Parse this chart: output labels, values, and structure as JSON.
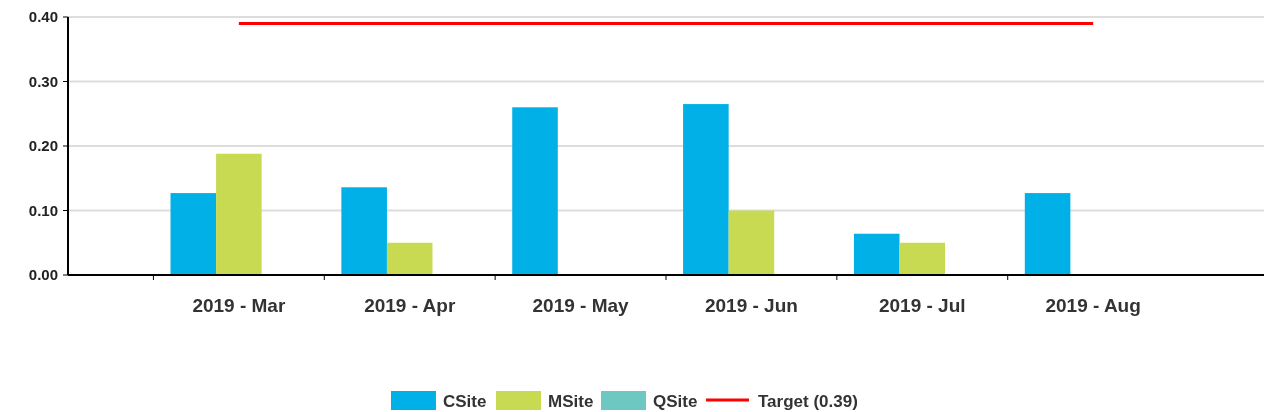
{
  "chart_data": {
    "type": "bar",
    "categories": [
      "2019 - Mar",
      "2019 - Apr",
      "2019 - May",
      "2019 - Jun",
      "2019 - Jul",
      "2019 - Aug"
    ],
    "series": [
      {
        "name": "CSite",
        "color": "#00b0e6",
        "values": [
          0.127,
          0.136,
          0.26,
          0.265,
          0.064,
          0.127
        ]
      },
      {
        "name": "MSite",
        "color": "#c8da52",
        "values": [
          0.188,
          0.05,
          null,
          0.1,
          0.05,
          null
        ]
      },
      {
        "name": "QSite",
        "color": "#6cc8c0",
        "values": [
          null,
          null,
          null,
          null,
          null,
          null
        ]
      },
      {
        "name": "Target (0.39)",
        "type": "line",
        "color": "#ff0000",
        "values": [
          0.39,
          0.39,
          0.39,
          0.39,
          0.39,
          0.39
        ]
      }
    ],
    "ylim": [
      0,
      0.4
    ],
    "yticks": [
      {
        "value": 0,
        "label": "0.00"
      },
      {
        "value": 0.1,
        "label": "0.10"
      },
      {
        "value": 0.2,
        "label": "0.20"
      },
      {
        "value": 0.3,
        "label": "0.30"
      },
      {
        "value": 0.4,
        "label": "0.40"
      }
    ],
    "grid": "y",
    "legend": "bottom",
    "marker": "none"
  }
}
